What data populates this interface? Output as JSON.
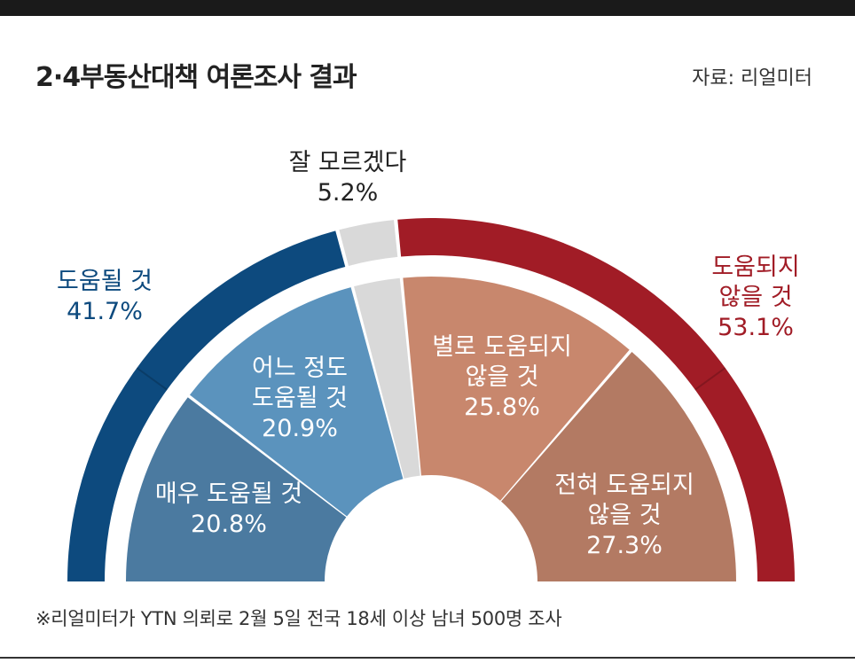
{
  "title": "2·4부동산대책 여론조사 결과",
  "source": "자료: 리얼미터",
  "footnote": "※리얼미터가 YTN 의뢰로 2월 5일 전국 18세 이상 남녀 500명 조사",
  "colors": {
    "positive_outer": "#0d4a7e",
    "negative_outer": "#a11c26",
    "unknown": "#d9d9d9",
    "very_positive": "#4b7aa0",
    "somewhat_positive": "#5b93bd",
    "somewhat_negative": "#c8876d",
    "very_negative": "#b37a63",
    "positive_text": "#0d4a7e",
    "negative_text": "#a11c26"
  },
  "chart_data": {
    "type": "pie",
    "layout": "semicircle-donut-nested",
    "outer": [
      {
        "label": "도움될 것",
        "value": 41.7,
        "value_label": "41.7%"
      },
      {
        "label": "잘 모르겠다",
        "value": 5.2,
        "value_label": "5.2%"
      },
      {
        "label": "도움되지 않을 것",
        "value": 53.1,
        "value_label": "53.1%"
      }
    ],
    "inner": [
      {
        "label": "매우 도움될 것",
        "value": 20.8,
        "value_label": "20.8%"
      },
      {
        "label": "어느 정도 도움될 것",
        "value": 20.9,
        "value_label": "20.9%"
      },
      {
        "label": "잘 모르겠다",
        "value": 5.2,
        "value_label": ""
      },
      {
        "label": "별로 도움되지 않을 것",
        "value": 25.8,
        "value_label": "25.8%"
      },
      {
        "label": "전혀 도움되지 않을 것",
        "value": 27.3,
        "value_label": "27.3%"
      }
    ],
    "label_lines": {
      "outer_positive": [
        "도움될 것",
        "41.7%"
      ],
      "outer_unknown": [
        "잘 모르겠다",
        "5.2%"
      ],
      "outer_negative": [
        "도움되지",
        "않을 것",
        "53.1%"
      ],
      "inner_very_positive": [
        "매우 도움될 것",
        "20.8%"
      ],
      "inner_somewhat_positive": [
        "어느 정도",
        "도움될 것",
        "20.9%"
      ],
      "inner_somewhat_negative": [
        "별로 도움되지",
        "않을 것",
        "25.8%"
      ],
      "inner_very_negative": [
        "전혀 도움되지",
        "않을 것",
        "27.3%"
      ]
    }
  }
}
